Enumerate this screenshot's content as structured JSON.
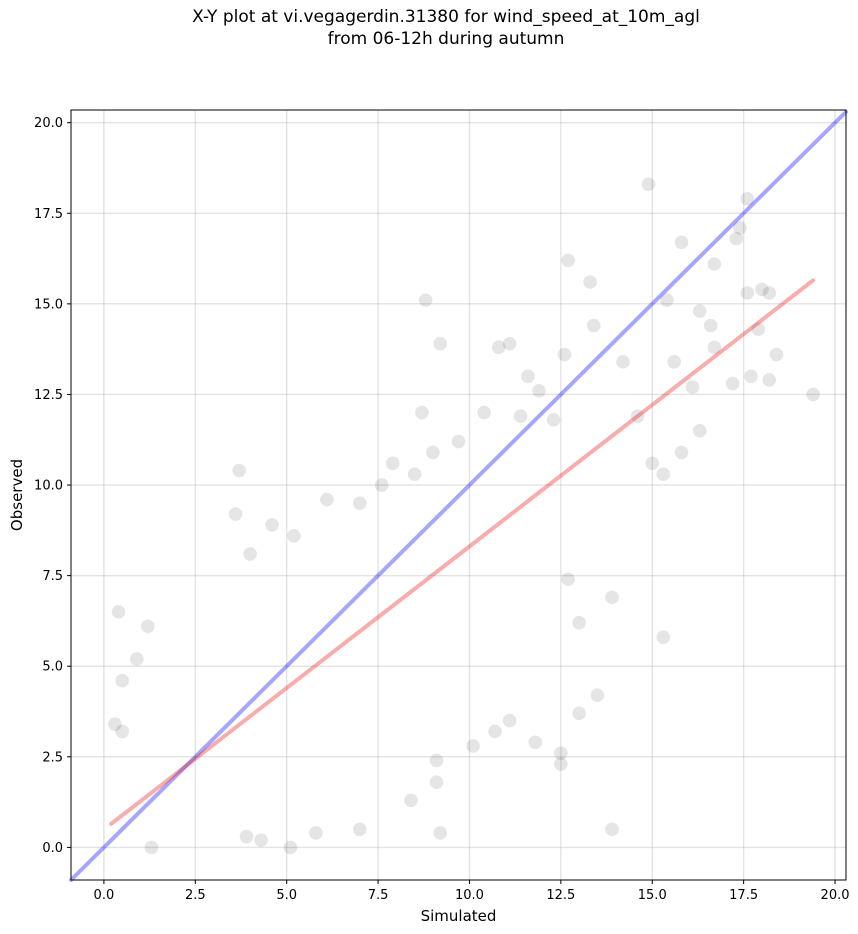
{
  "chart_data": {
    "type": "scatter",
    "title": [
      "X-Y plot at vi.vegagerdin.31380 for wind_speed_at_10m_agl",
      "from 06-12h during autumn"
    ],
    "xlabel": "Simulated",
    "ylabel": "Observed",
    "xlim": [
      -0.9,
      20.3
    ],
    "ylim": [
      -0.9,
      20.35
    ],
    "xticks": [
      0.0,
      2.5,
      5.0,
      7.5,
      10.0,
      12.5,
      15.0,
      17.5,
      20.0
    ],
    "yticks": [
      0.0,
      2.5,
      5.0,
      7.5,
      10.0,
      12.5,
      15.0,
      17.5,
      20.0
    ],
    "xtick_labels": [
      "0.0",
      "2.5",
      "5.0",
      "7.5",
      "10.0",
      "12.5",
      "15.0",
      "17.5",
      "20.0"
    ],
    "ytick_labels": [
      "0.0",
      "2.5",
      "5.0",
      "7.5",
      "10.0",
      "12.5",
      "15.0",
      "17.5",
      "20.0"
    ],
    "grid": true,
    "point_color": "#000000",
    "point_alpha": 0.1,
    "lines": [
      {
        "role": "identity",
        "color": "#0000ff",
        "x": [
          -0.9,
          20.3
        ],
        "y": [
          -0.9,
          20.3
        ]
      },
      {
        "role": "regression",
        "color": "#ee1111",
        "x": [
          0.2,
          19.4
        ],
        "y": [
          0.65,
          15.65
        ]
      }
    ],
    "points": [
      [
        14.9,
        18.3
      ],
      [
        17.6,
        17.9
      ],
      [
        17.4,
        17.1
      ],
      [
        17.3,
        16.8
      ],
      [
        15.8,
        16.7
      ],
      [
        12.7,
        16.2
      ],
      [
        16.7,
        16.1
      ],
      [
        13.3,
        15.6
      ],
      [
        8.8,
        15.1
      ],
      [
        15.4,
        15.1
      ],
      [
        17.6,
        15.3
      ],
      [
        18.0,
        15.4
      ],
      [
        18.2,
        15.3
      ],
      [
        16.3,
        14.8
      ],
      [
        17.9,
        14.3
      ],
      [
        16.6,
        14.4
      ],
      [
        13.4,
        14.4
      ],
      [
        11.1,
        13.9
      ],
      [
        9.2,
        13.9
      ],
      [
        10.8,
        13.8
      ],
      [
        15.6,
        13.4
      ],
      [
        16.7,
        13.8
      ],
      [
        18.4,
        13.6
      ],
      [
        12.6,
        13.6
      ],
      [
        14.2,
        13.4
      ],
      [
        17.7,
        13.0
      ],
      [
        18.2,
        12.9
      ],
      [
        17.2,
        12.8
      ],
      [
        16.1,
        12.7
      ],
      [
        19.4,
        12.5
      ],
      [
        8.7,
        12.0
      ],
      [
        16.3,
        11.5
      ],
      [
        13.9,
        6.9
      ],
      [
        14.6,
        11.9
      ],
      [
        15.8,
        10.9
      ],
      [
        15.0,
        10.6
      ],
      [
        15.3,
        10.3
      ],
      [
        12.7,
        7.4
      ],
      [
        13.0,
        6.2
      ],
      [
        15.3,
        5.8
      ],
      [
        13.5,
        4.2
      ],
      [
        13.9,
        0.5
      ],
      [
        13.0,
        3.7
      ],
      [
        12.5,
        2.6
      ],
      [
        12.5,
        2.3
      ],
      [
        11.8,
        2.9
      ],
      [
        11.1,
        3.5
      ],
      [
        10.7,
        3.2
      ],
      [
        10.1,
        2.8
      ],
      [
        9.2,
        0.4
      ],
      [
        9.1,
        1.8
      ],
      [
        9.1,
        2.4
      ],
      [
        8.4,
        1.3
      ],
      [
        7.0,
        0.5
      ],
      [
        5.1,
        0.0
      ],
      [
        3.9,
        0.3
      ],
      [
        4.3,
        0.2
      ],
      [
        5.8,
        0.4
      ],
      [
        1.3,
        0.0
      ],
      [
        0.3,
        3.4
      ],
      [
        0.5,
        3.2
      ],
      [
        0.4,
        6.5
      ],
      [
        1.2,
        6.1
      ],
      [
        0.9,
        5.2
      ],
      [
        0.5,
        4.6
      ],
      [
        3.6,
        9.2
      ],
      [
        3.7,
        10.4
      ],
      [
        4.0,
        8.1
      ],
      [
        4.6,
        8.9
      ],
      [
        5.2,
        8.6
      ],
      [
        6.1,
        9.6
      ],
      [
        7.0,
        9.5
      ],
      [
        7.6,
        10.0
      ],
      [
        7.9,
        10.6
      ],
      [
        8.5,
        10.3
      ],
      [
        9.0,
        10.9
      ],
      [
        9.7,
        11.2
      ],
      [
        10.4,
        12.0
      ],
      [
        11.4,
        11.9
      ],
      [
        11.6,
        13.0
      ],
      [
        11.9,
        12.6
      ],
      [
        12.3,
        11.8
      ]
    ]
  }
}
